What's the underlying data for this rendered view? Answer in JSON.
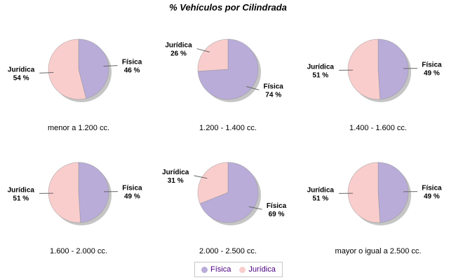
{
  "title": "% Vehículos por Cilindrada",
  "legend": {
    "items": [
      {
        "label": "Física",
        "color": "#b9acd9"
      },
      {
        "label": "Jurídica",
        "color": "#facdcd"
      }
    ],
    "text_color": "#4b0082"
  },
  "chart_data": {
    "type": "pie",
    "title": "% Vehículos por Cilindrada",
    "layout": {
      "grid": "2 rows x 3 cols",
      "legend_position": "bottom",
      "label_style": "outside with leader lines",
      "shadow": true
    },
    "series_names": [
      "Física",
      "Jurídica"
    ],
    "colors": {
      "Física": "#b9acd9",
      "Jurídica": "#facdcd"
    },
    "value_suffix": " %",
    "pies": [
      {
        "category": "menor a 1.200 cc.",
        "slices": [
          {
            "name": "Física",
            "value": 46
          },
          {
            "name": "Jurídica",
            "value": 54
          }
        ]
      },
      {
        "category": "1.200 - 1.400 cc.",
        "slices": [
          {
            "name": "Física",
            "value": 74
          },
          {
            "name": "Jurídica",
            "value": 26
          }
        ]
      },
      {
        "category": "1.400 - 1.600 cc.",
        "slices": [
          {
            "name": "Física",
            "value": 49
          },
          {
            "name": "Jurídica",
            "value": 51
          }
        ]
      },
      {
        "category": "1.600 - 2.000 cc.",
        "slices": [
          {
            "name": "Física",
            "value": 49
          },
          {
            "name": "Jurídica",
            "value": 51
          }
        ]
      },
      {
        "category": "2.000 - 2.500 cc.",
        "slices": [
          {
            "name": "Física",
            "value": 69
          },
          {
            "name": "Jurídica",
            "value": 31
          }
        ]
      },
      {
        "category": "mayor o igual a 2.500 cc.",
        "slices": [
          {
            "name": "Física",
            "value": 49
          },
          {
            "name": "Jurídica",
            "value": 51
          }
        ]
      }
    ]
  }
}
